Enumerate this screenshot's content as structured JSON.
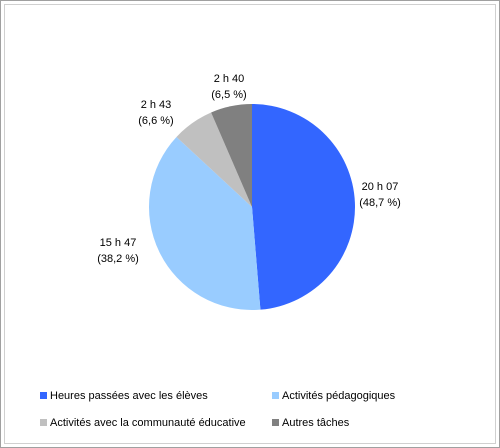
{
  "chart_data": {
    "type": "pie",
    "categories": [
      "Heures passées avec les élèves",
      "Activités pédagogiques",
      "Activités avec la communauté éducative",
      "Autres tâches"
    ],
    "values": [
      48.7,
      38.2,
      6.6,
      6.5
    ],
    "value_labels": [
      "(48,7 %)",
      "(38,2 %)",
      "(6,6 %)",
      "(6,5 %)"
    ],
    "time_labels": [
      "20 h 07",
      "15 h 47",
      "2 h 43",
      "2 h 40"
    ],
    "colors": [
      "#3366ff",
      "#99ccff",
      "#c0c0c0",
      "#808080"
    ]
  }
}
